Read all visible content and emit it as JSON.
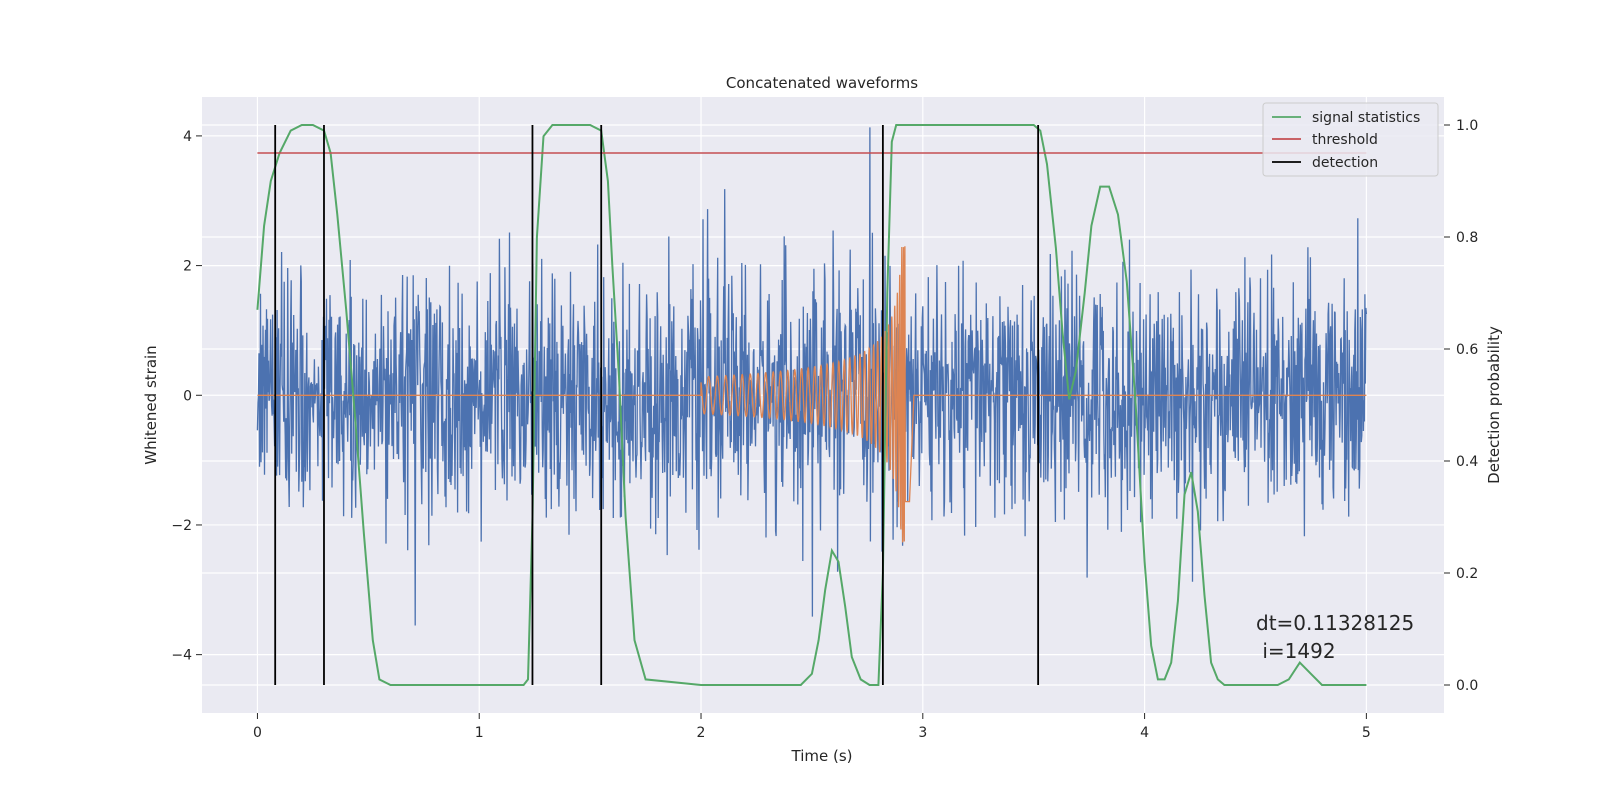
{
  "chart_data": {
    "type": "line",
    "title": "Concatenated waveforms",
    "xlabel": "Time (s)",
    "ylabel": "Whitened strain",
    "ylabel_right": "Detection probability",
    "xlim": [
      -0.25,
      5.35
    ],
    "ylim": [
      -4.9,
      4.6
    ],
    "ylim_right": [
      -0.05,
      1.05
    ],
    "x_ticks": [
      0,
      1,
      2,
      3,
      4,
      5
    ],
    "y_ticks": [
      -4,
      -2,
      0,
      2,
      4
    ],
    "y_ticks_right": [
      0.0,
      0.2,
      0.4,
      0.6,
      0.8,
      1.0
    ],
    "x_tick_labels": [
      "0",
      "1",
      "2",
      "3",
      "4",
      "5"
    ],
    "y_tick_labels": [
      "−4",
      "−2",
      "0",
      "2",
      "4"
    ],
    "y_tick_labels_right": [
      "0.0",
      "0.2",
      "0.4",
      "0.6",
      "0.8",
      "1.0"
    ],
    "grid": true,
    "legend_position": "top-right",
    "noise": {
      "x_range": [
        0,
        5
      ],
      "typical_amplitude": 1.1,
      "max_amplitude": 4.2,
      "color": "#4c72b0"
    },
    "chirp": {
      "x_range": [
        2.0,
        2.94
      ],
      "peak_time": 2.92,
      "peak_amplitude": 2.3,
      "color": "#dd8452"
    },
    "series": [
      {
        "name": "signal statistics",
        "axis": "right",
        "color": "#55a868",
        "x": [
          0,
          0.03,
          0.06,
          0.1,
          0.15,
          0.2,
          0.25,
          0.3,
          0.33,
          0.36,
          0.4,
          0.44,
          0.48,
          0.52,
          0.55,
          0.6,
          0.8,
          1.0,
          1.2,
          1.22,
          1.24,
          1.26,
          1.29,
          1.33,
          1.4,
          1.5,
          1.55,
          1.58,
          1.6,
          1.63,
          1.66,
          1.7,
          1.75,
          2.0,
          2.3,
          2.45,
          2.5,
          2.53,
          2.56,
          2.59,
          2.62,
          2.65,
          2.68,
          2.72,
          2.76,
          2.8,
          2.82,
          2.84,
          2.86,
          2.88,
          3.0,
          3.3,
          3.5,
          3.53,
          3.56,
          3.6,
          3.63,
          3.66,
          3.69,
          3.73,
          3.76,
          3.8,
          3.84,
          3.88,
          3.92,
          3.96,
          4.0,
          4.03,
          4.06,
          4.09,
          4.12,
          4.15,
          4.18,
          4.21,
          4.24,
          4.27,
          4.3,
          4.33,
          4.36,
          4.4,
          4.6,
          4.65,
          4.7,
          4.75,
          4.8,
          4.9,
          5.0
        ],
        "y": [
          0.67,
          0.82,
          0.9,
          0.95,
          0.99,
          1.0,
          1.0,
          0.99,
          0.95,
          0.84,
          0.67,
          0.48,
          0.27,
          0.08,
          0.01,
          0.0,
          0.0,
          0.0,
          0.0,
          0.01,
          0.3,
          0.8,
          0.98,
          1.0,
          1.0,
          1.0,
          0.99,
          0.9,
          0.75,
          0.55,
          0.3,
          0.08,
          0.01,
          0.0,
          0.0,
          0.0,
          0.02,
          0.08,
          0.17,
          0.24,
          0.22,
          0.14,
          0.05,
          0.01,
          0.0,
          0.0,
          0.2,
          0.7,
          0.97,
          1.0,
          1.0,
          1.0,
          1.0,
          0.99,
          0.93,
          0.78,
          0.63,
          0.51,
          0.56,
          0.7,
          0.82,
          0.89,
          0.89,
          0.84,
          0.72,
          0.5,
          0.22,
          0.07,
          0.01,
          0.01,
          0.04,
          0.15,
          0.34,
          0.38,
          0.31,
          0.16,
          0.04,
          0.01,
          0.0,
          0.0,
          0.0,
          0.01,
          0.04,
          0.02,
          0.0,
          0.0,
          0.0
        ]
      },
      {
        "name": "threshold",
        "axis": "right",
        "color": "#c44e52",
        "x": [
          0,
          5
        ],
        "y": [
          0.95,
          0.95
        ]
      },
      {
        "name": "detection",
        "axis": "right",
        "color": "#000000",
        "style": "vlines",
        "x": [
          0.08,
          0.3,
          1.24,
          1.55,
          2.82,
          3.52
        ]
      }
    ],
    "annotation": {
      "line1": "dt=0.11328125",
      "line2": " i=1492",
      "x": 4.5,
      "y_right": 0.12
    }
  }
}
